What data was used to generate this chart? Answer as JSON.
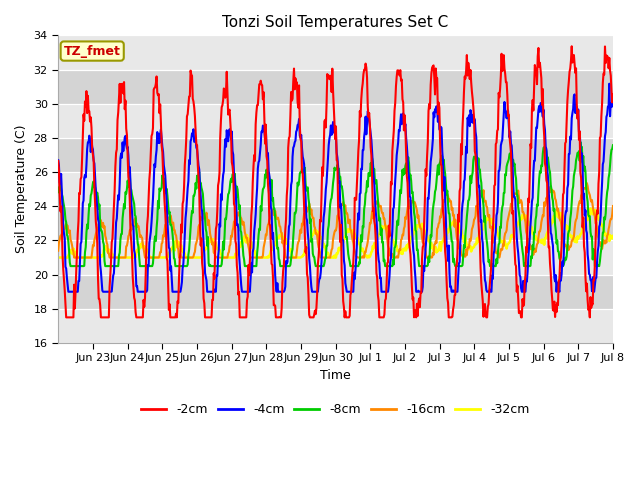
{
  "title": "Tonzi Soil Temperatures Set C",
  "xlabel": "Time",
  "ylabel": "Soil Temperature (C)",
  "ylim": [
    16,
    34
  ],
  "yticks": [
    16,
    18,
    20,
    22,
    24,
    26,
    28,
    30,
    32,
    34
  ],
  "annotation": "TZ_fmet",
  "xtick_labels": [
    "Jun 23",
    "Jun 24",
    "Jun 25",
    "Jun 26",
    "Jun 27",
    "Jun 28",
    "Jun 29",
    "Jun 30",
    "Jul 1",
    "Jul 2",
    "Jul 3",
    "Jul 4",
    "Jul 5",
    "Jul 6",
    "Jul 7",
    "Jul 8"
  ],
  "line_colors": [
    "#ff0000",
    "#0000ff",
    "#00cc00",
    "#ff8800",
    "#ffff00"
  ],
  "line_labels": [
    "-2cm",
    "-4cm",
    "-8cm",
    "-16cm",
    "-32cm"
  ],
  "line_widths": [
    1.5,
    1.5,
    1.5,
    1.5,
    1.8
  ],
  "n_points": 768,
  "n_days": 16,
  "band_colors": [
    "#e8e8e8",
    "#d4d4d4"
  ],
  "grid_line_color": "#ffffff",
  "fig_bg": "#ffffff",
  "annotation_text_color": "#cc0000",
  "annotation_bg": "#ffffcc",
  "annotation_edge": "#999900"
}
